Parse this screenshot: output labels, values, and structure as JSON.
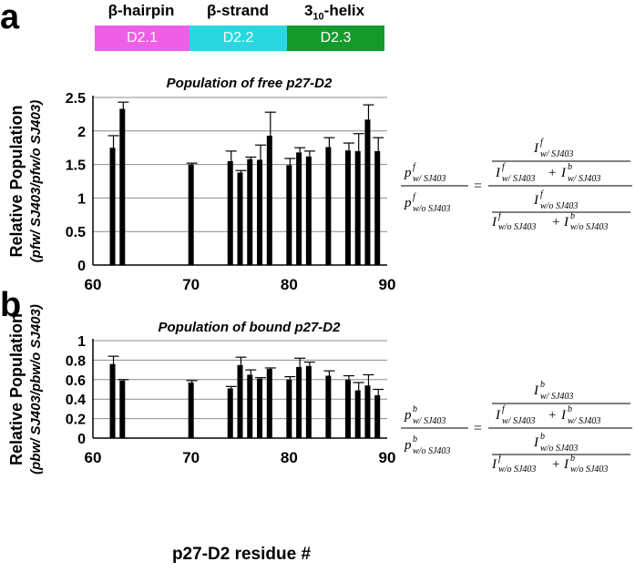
{
  "panels": [
    {
      "letter": "a"
    },
    {
      "letter": "b"
    }
  ],
  "domains": [
    {
      "label_main": "β-hairpin",
      "label_sub": "",
      "label_end": "",
      "box": "D2.1",
      "color": "#ee5ee6"
    },
    {
      "label_main": "β-strand",
      "label_sub": "",
      "label_end": "",
      "box": "D2.2",
      "color": "#29d7e0"
    },
    {
      "label_main": "3",
      "label_sub": "10",
      "label_end": "-helix",
      "box": "D2.3",
      "color": "#149b2c"
    }
  ],
  "shared_xlabel": "p27-D2 residue #",
  "chart_data": [
    {
      "type": "bar",
      "title": "Population of free p27-D2",
      "ylabel_line1": "Relative Population",
      "ylabel_line2": "(pfw/ SJ403/pfw/o SJ403)",
      "xlim": [
        60,
        90
      ],
      "ylim": [
        0,
        2.5
      ],
      "xticks": [
        60,
        70,
        80,
        90
      ],
      "yticks": [
        0,
        0.5,
        1,
        1.5,
        2,
        2.5
      ],
      "ytick_labels": [
        "0",
        "0.5",
        "1",
        "1.5",
        "2",
        "2.5"
      ],
      "grid": true,
      "x": [
        62,
        63,
        70,
        74,
        75,
        76,
        77,
        78,
        80,
        81,
        82,
        84,
        86,
        87,
        88,
        89
      ],
      "values": [
        1.75,
        2.33,
        1.5,
        1.55,
        1.38,
        1.58,
        1.57,
        1.93,
        1.49,
        1.68,
        1.62,
        1.76,
        1.71,
        1.7,
        2.17,
        1.7
      ],
      "errors": [
        0.18,
        0.1,
        0.02,
        0.15,
        0.03,
        0.03,
        0.22,
        0.35,
        0.1,
        0.07,
        0.08,
        0.14,
        0.11,
        0.26,
        0.22,
        0.2
      ]
    },
    {
      "type": "bar",
      "title": "Population of bound p27-D2",
      "ylabel_line1": "Relative Population",
      "ylabel_line2": "(pbw/ SJ403/pbw/o SJ403)",
      "xlim": [
        60,
        90
      ],
      "ylim": [
        0,
        1
      ],
      "xticks": [
        60,
        70,
        80,
        90
      ],
      "yticks": [
        0,
        0.2,
        0.4,
        0.6,
        0.8,
        1
      ],
      "ytick_labels": [
        "0",
        "0.2",
        "0.4",
        "0.6",
        "0.8",
        "1"
      ],
      "grid": true,
      "x": [
        62,
        63,
        70,
        74,
        75,
        76,
        77,
        78,
        80,
        81,
        82,
        84,
        86,
        87,
        88,
        89
      ],
      "values": [
        0.76,
        0.59,
        0.57,
        0.51,
        0.75,
        0.65,
        0.61,
        0.71,
        0.6,
        0.73,
        0.74,
        0.64,
        0.6,
        0.49,
        0.54,
        0.44
      ],
      "errors": [
        0.08,
        0.01,
        0.02,
        0.02,
        0.08,
        0.05,
        0.01,
        0.01,
        0.03,
        0.09,
        0.04,
        0.05,
        0.04,
        0.08,
        0.11,
        0.06
      ]
    }
  ],
  "formulas": [
    {
      "sup": "f"
    },
    {
      "sup": "b"
    }
  ]
}
